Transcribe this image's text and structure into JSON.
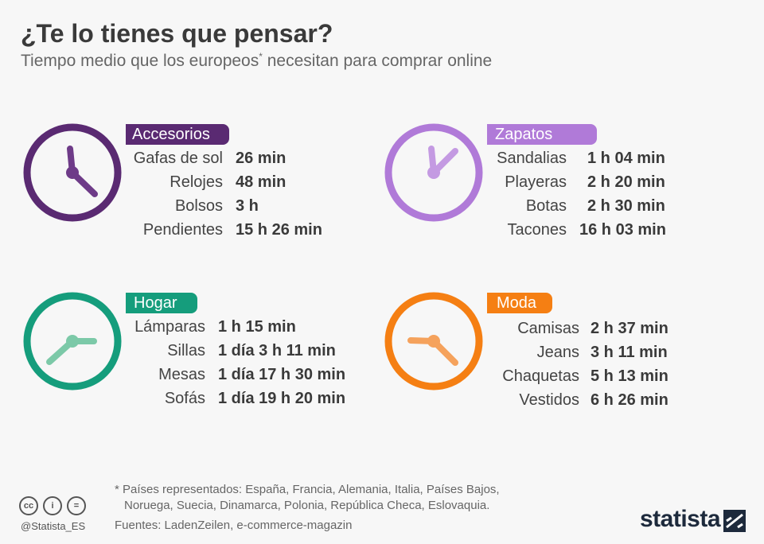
{
  "title": "¿Te lo tienes que pensar?",
  "subtitle": "Tiempo medio que los europeos",
  "subtitle_mark": "*",
  "subtitle_rest": " necesitan para comprar online",
  "categories": [
    {
      "name": "Accesorios",
      "color": "#5a2a72",
      "hand_color": "#6e3b88",
      "items": [
        {
          "label": "Gafas de sol",
          "value": "26 min"
        },
        {
          "label": "Relojes",
          "value": "48 min"
        },
        {
          "label": "Bolsos",
          "value": "3 h"
        },
        {
          "label": "Pendientes",
          "value": "15 h 26 min"
        }
      ]
    },
    {
      "name": "Zapatos",
      "color": "#b07ad8",
      "hand_color": "#c49ae2",
      "items": [
        {
          "label": "Sandalias",
          "value": "1 h 04 min"
        },
        {
          "label": "Playeras",
          "value": "2 h 20 min"
        },
        {
          "label": "Botas",
          "value": "2 h 30 min"
        },
        {
          "label": "Tacones",
          "value": "16 h 03 min"
        }
      ]
    },
    {
      "name": "Hogar",
      "color": "#159d7c",
      "hand_color": "#7cc9a8",
      "items": [
        {
          "label": "Lámparas",
          "value": "1 h 15 min"
        },
        {
          "label": "Sillas",
          "value": "1 día 3 h 11 min"
        },
        {
          "label": "Mesas",
          "value": "1 día 17 h 30 min"
        },
        {
          "label": "Sofás",
          "value": "1 día 19 h 20 min"
        }
      ]
    },
    {
      "name": "Moda",
      "color": "#f57f13",
      "hand_color": "#f5a25c",
      "items": [
        {
          "label": "Camisas",
          "value": "2 h 37 min"
        },
        {
          "label": "Jeans",
          "value": "3 h 11 min"
        },
        {
          "label": "Chaquetas",
          "value": "5 h 13 min"
        },
        {
          "label": "Vestidos",
          "value": "6 h 26 min"
        }
      ]
    }
  ],
  "footnote_line1": "* Países representados: España, Francia, Alemania, Italia, Países Bajos,",
  "footnote_line2": "Noruega, Suecia, Dinamarca, Polonia, República Checa, Eslovaquia.",
  "sources": "Fuentes: LadenZeilen, e-commerce-magazin",
  "handle": "@Statista_ES",
  "cc_icons": [
    "cc-icon",
    "by-icon",
    "nd-icon"
  ],
  "cc_symbols": [
    "cc",
    "i",
    "="
  ],
  "logo_text": "statista"
}
